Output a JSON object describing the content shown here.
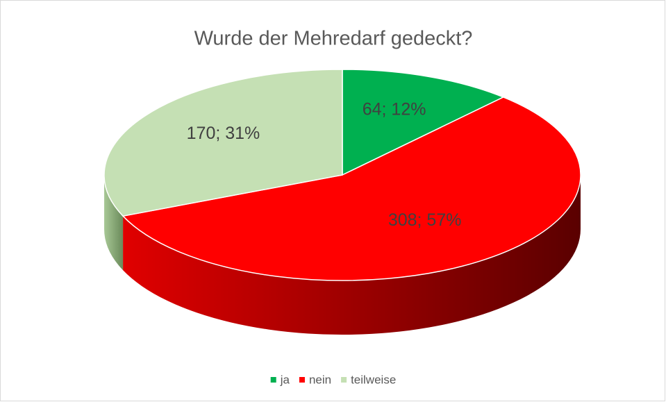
{
  "chart_data": {
    "type": "pie3d",
    "title": "Wurde der Mehredarf gedeckt?",
    "categories": [
      "ja",
      "nein",
      "teilweise"
    ],
    "values": [
      64,
      308,
      170
    ],
    "value_labels": [
      "64; 12%",
      "308; 57%",
      "170; 31%"
    ],
    "colors": [
      "#00b050",
      "#ff0000",
      "#c5e0b4"
    ],
    "legend": "bottom"
  }
}
